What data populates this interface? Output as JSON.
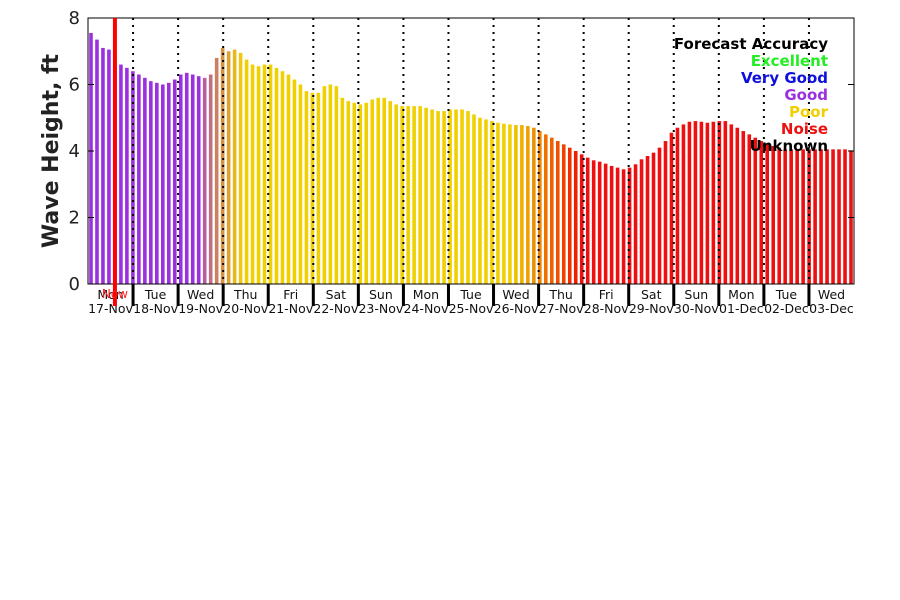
{
  "chart_data": {
    "type": "bar",
    "ylabel": "Wave Height, ft",
    "ylim": [
      0,
      8
    ],
    "yticks": [
      0,
      2,
      4,
      6,
      8
    ],
    "grid": "dotted vertical day dividers",
    "now_label": "Now",
    "now_index": 4,
    "days": [
      {
        "dow": "Mon",
        "date": "17-Nov"
      },
      {
        "dow": "Tue",
        "date": "18-Nov"
      },
      {
        "dow": "Wed",
        "date": "19-Nov"
      },
      {
        "dow": "Thu",
        "date": "20-Nov"
      },
      {
        "dow": "Fri",
        "date": "21-Nov"
      },
      {
        "dow": "Sat",
        "date": "22-Nov"
      },
      {
        "dow": "Sun",
        "date": "23-Nov"
      },
      {
        "dow": "Mon",
        "date": "24-Nov"
      },
      {
        "dow": "Tue",
        "date": "25-Nov"
      },
      {
        "dow": "Wed",
        "date": "26-Nov"
      },
      {
        "dow": "Thu",
        "date": "27-Nov"
      },
      {
        "dow": "Fri",
        "date": "28-Nov"
      },
      {
        "dow": "Sat",
        "date": "29-Nov"
      },
      {
        "dow": "Sun",
        "date": "30-Nov"
      },
      {
        "dow": "Mon",
        "date": "01-Dec"
      },
      {
        "dow": "Tue",
        "date": "02-Dec"
      },
      {
        "dow": "Wed",
        "date": "03-Dec"
      }
    ],
    "legend": {
      "title": "Forecast Accuracy",
      "placement": "top-right",
      "entries": [
        {
          "label": "Excellent",
          "color": "#22ee22"
        },
        {
          "label": "Very Good",
          "color": "#1010dd"
        },
        {
          "label": "Good",
          "color": "#9a30e0"
        },
        {
          "label": "Poor",
          "color": "#f0d000"
        },
        {
          "label": "Noise",
          "color": "#ee1010"
        },
        {
          "label": "Unknown",
          "color": "#000000"
        }
      ]
    },
    "values": [
      7.55,
      7.35,
      7.1,
      7.05,
      6.8,
      6.6,
      6.5,
      6.4,
      6.3,
      6.2,
      6.1,
      6.05,
      6.0,
      6.05,
      6.15,
      6.3,
      6.35,
      6.3,
      6.25,
      6.2,
      6.3,
      6.8,
      7.1,
      7.0,
      7.05,
      6.95,
      6.75,
      6.6,
      6.55,
      6.6,
      6.6,
      6.5,
      6.4,
      6.3,
      6.15,
      6.0,
      5.8,
      5.75,
      5.75,
      5.95,
      6.0,
      5.95,
      5.6,
      5.5,
      5.45,
      5.4,
      5.45,
      5.55,
      5.6,
      5.6,
      5.5,
      5.4,
      5.35,
      5.35,
      5.35,
      5.35,
      5.3,
      5.25,
      5.2,
      5.2,
      5.25,
      5.25,
      5.25,
      5.2,
      5.1,
      5.0,
      4.95,
      4.9,
      4.85,
      4.82,
      4.8,
      4.78,
      4.78,
      4.75,
      4.7,
      4.6,
      4.5,
      4.4,
      4.3,
      4.2,
      4.1,
      4.0,
      3.9,
      3.8,
      3.72,
      3.68,
      3.62,
      3.55,
      3.5,
      3.45,
      3.5,
      3.6,
      3.75,
      3.85,
      3.95,
      4.1,
      4.3,
      4.55,
      4.7,
      4.8,
      4.88,
      4.9,
      4.88,
      4.85,
      4.88,
      4.9,
      4.9,
      4.8,
      4.7,
      4.6,
      4.5,
      4.4,
      4.3,
      4.2,
      4.15,
      4.1,
      4.05,
      4.05,
      4.05,
      4.05,
      4.05,
      4.05,
      4.05,
      4.05,
      4.05,
      4.05,
      4.05,
      4.02
    ],
    "colors": [
      "#9a30e0",
      "#9a30e0",
      "#9a30e0",
      "#9a30e0",
      "#9a30e0",
      "#9a30e0",
      "#9a30e0",
      "#9a30e0",
      "#9a30e0",
      "#9a30e0",
      "#9a30e0",
      "#9a30e0",
      "#9a30e0",
      "#9a30e0",
      "#9a30e0",
      "#9a30e0",
      "#9a30e0",
      "#9a30e0",
      "#9a30e0",
      "#b85ea0",
      "#c07080",
      "#cc8060",
      "#d89040",
      "#e0a030",
      "#e8b820",
      "#f0c810",
      "#f0d000",
      "#f0d000",
      "#f0d000",
      "#f0d000",
      "#f0d000",
      "#f0d000",
      "#f0d000",
      "#f0d000",
      "#f0d000",
      "#f0d000",
      "#f0d000",
      "#f0d000",
      "#f0d000",
      "#f0d000",
      "#f0d000",
      "#f0d000",
      "#f0d000",
      "#f0d000",
      "#f0d000",
      "#f0d000",
      "#f0d000",
      "#f0d000",
      "#f0d000",
      "#f0d000",
      "#f0d000",
      "#f0d000",
      "#f0d000",
      "#f0d000",
      "#f0d000",
      "#f0d000",
      "#f0d000",
      "#f0d000",
      "#f0d000",
      "#f0d000",
      "#f0d000",
      "#f0d000",
      "#f0d000",
      "#f0d000",
      "#f0d000",
      "#f0d000",
      "#f0d000",
      "#f0d000",
      "#f0d000",
      "#f0d000",
      "#f0d000",
      "#f0c000",
      "#f0b000",
      "#eea000",
      "#ee9000",
      "#ee8000",
      "#ee7000",
      "#ee6000",
      "#ee5000",
      "#ee4000",
      "#ee3000",
      "#ee2000",
      "#ee1010",
      "#ee1010",
      "#ee1010",
      "#ee1010",
      "#ee1010",
      "#ee1010",
      "#ee1010",
      "#ee1010",
      "#ee1010",
      "#ee1010",
      "#ee1010",
      "#ee1010",
      "#ee1010",
      "#ee1010",
      "#ee1010",
      "#ee1010",
      "#ee1010",
      "#ee1010",
      "#ee1010",
      "#ee1010",
      "#ee1010",
      "#ee1010",
      "#ee1010",
      "#ee1010",
      "#ee1010",
      "#ee1010",
      "#ee1010",
      "#ee1010",
      "#ee1010",
      "#ee1010",
      "#ee1010",
      "#ee1010",
      "#ee1010",
      "#ee1010",
      "#ee1010",
      "#ee1010",
      "#ee1010",
      "#ee1010",
      "#ee1010",
      "#ee1010",
      "#ee1010",
      "#ee1010",
      "#ee1010",
      "#ee1010",
      "#ee1010",
      "#ee1010"
    ]
  }
}
